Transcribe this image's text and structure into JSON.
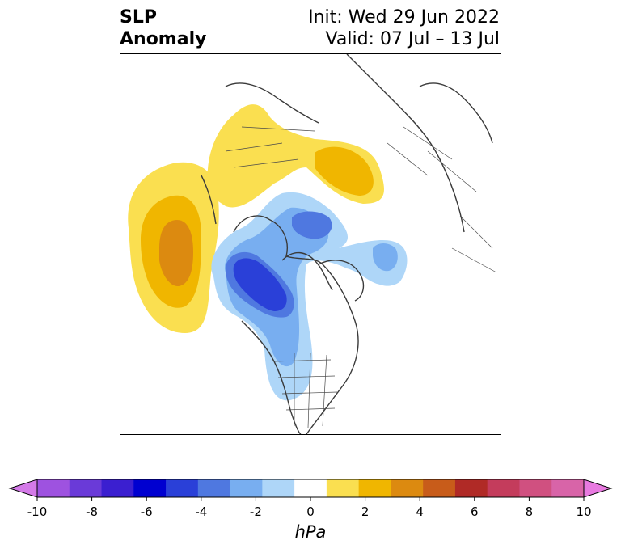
{
  "header": {
    "title_line1": "SLP",
    "title_line2": "Anomaly",
    "init": "Init: Wed 29 Jun 2022",
    "valid": "Valid: 07 Jul – 13 Jul"
  },
  "colorbar": {
    "unit": "hPa",
    "tick_labels": [
      "-10",
      "-8",
      "-6",
      "-4",
      "-2",
      "0",
      "2",
      "4",
      "6",
      "8",
      "10"
    ],
    "colors": [
      "#d47ae8",
      "#9e52e0",
      "#6a3ad8",
      "#3b1fd0",
      "#0000d0",
      "#2a40d8",
      "#4f78e0",
      "#78aef0",
      "#aed6f8",
      "#ffffff",
      "#fadf50",
      "#f0b600",
      "#dc8a10",
      "#c85c1a",
      "#b02a26",
      "#c43c5c",
      "#d05080",
      "#d864a8",
      "#e87ae0"
    ],
    "range": [
      -10,
      10
    ],
    "extend": "both"
  },
  "colors": {
    "positive_weak": "#fadf50",
    "positive_mid": "#f0b600",
    "positive_strong": "#dc8a10",
    "negative_weak": "#aed6f8",
    "negative_mid": "#78aef0",
    "negative_strong": "#4f78e0",
    "negative_max": "#2a40d8",
    "borders": "#3a3a3a"
  }
}
